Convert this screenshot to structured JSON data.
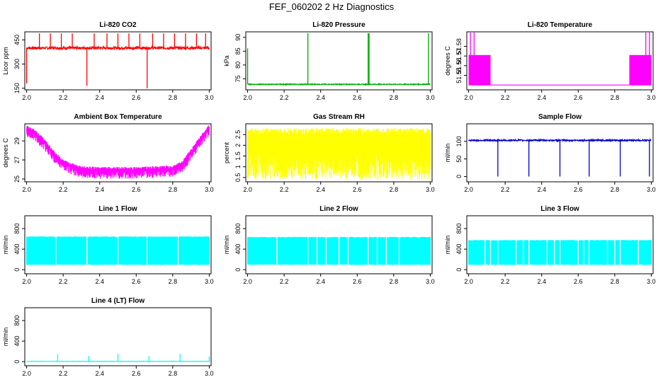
{
  "figure": {
    "title": "FEF_060202  2 Hz Diagnostics"
  },
  "chart_data": [
    {
      "id": "co2",
      "type": "line",
      "title": "Li-820 CO2",
      "ylabel": "Licor ppm",
      "xlim": [
        1.99,
        3.01
      ],
      "ylim": [
        140,
        500
      ],
      "yticks": [
        150,
        300,
        450
      ],
      "xticks": [
        "2.0",
        "2.2",
        "2.4",
        "2.6",
        "2.8",
        "3.0"
      ],
      "color": "#ff0000",
      "baseline": 400,
      "noise": 8,
      "spikes": [
        [
          2.0,
          180
        ],
        [
          2.07,
          490
        ],
        [
          2.13,
          490
        ],
        [
          2.19,
          490
        ],
        [
          2.25,
          490
        ],
        [
          2.33,
          165
        ],
        [
          2.37,
          490
        ],
        [
          2.44,
          490
        ],
        [
          2.5,
          490
        ],
        [
          2.56,
          490
        ],
        [
          2.62,
          490
        ],
        [
          2.66,
          150
        ],
        [
          2.69,
          490
        ],
        [
          2.75,
          490
        ],
        [
          2.81,
          490
        ],
        [
          2.87,
          490
        ],
        [
          2.93,
          490
        ],
        [
          2.98,
          490
        ]
      ]
    },
    {
      "id": "pressure",
      "type": "line",
      "title": "Li-820 Pressure",
      "ylabel": "kPa",
      "xlim": [
        1.99,
        3.01
      ],
      "ylim": [
        71,
        92
      ],
      "yticks": [
        75,
        80,
        85,
        90
      ],
      "xticks": [
        "2.0",
        "2.2",
        "2.4",
        "2.6",
        "2.8",
        "3.0"
      ],
      "color": "#00aa00",
      "baseline": 73.0,
      "noise": 0.15,
      "spikes": [
        [
          2.0,
          86
        ],
        [
          2.33,
          91.5
        ],
        [
          2.66,
          91.5
        ],
        [
          2.665,
          91.5
        ],
        [
          2.99,
          91.5
        ]
      ]
    },
    {
      "id": "licor-temp",
      "type": "line",
      "title": "Li-820 Temperature",
      "ylabel": "degrees C",
      "xlim": [
        1.99,
        3.01
      ],
      "ylim": [
        51.535,
        51.595
      ],
      "yticks": [
        51.55,
        51.56,
        51.57,
        51.58
      ],
      "xticks": [
        "2.0",
        "2.2",
        "2.4",
        "2.6",
        "2.8",
        "3.0"
      ],
      "color": "#ff00ff",
      "baseline": 51.54,
      "blocks": [
        [
          2.0,
          2.12,
          51.54,
          51.571
        ],
        [
          2.88,
          3.0,
          51.54,
          51.571
        ]
      ],
      "spikes": [
        [
          2.01,
          51.595
        ],
        [
          2.03,
          51.595
        ],
        [
          2.97,
          51.595
        ],
        [
          2.99,
          51.595
        ]
      ]
    },
    {
      "id": "box-temp",
      "type": "line",
      "title": "Ambient Box Temperature",
      "ylabel": "degrees C",
      "xlim": [
        1.99,
        3.01
      ],
      "ylim": [
        24.7,
        30.8
      ],
      "yticks": [
        25,
        27,
        29
      ],
      "xticks": [
        "2.0",
        "2.2",
        "2.4",
        "2.6",
        "2.8",
        "3.0"
      ],
      "color": "#ff00ff",
      "curve": [
        [
          2.0,
          30.3
        ],
        [
          2.05,
          29.8
        ],
        [
          2.1,
          28.8
        ],
        [
          2.15,
          27.6
        ],
        [
          2.2,
          26.7
        ],
        [
          2.3,
          26.0
        ],
        [
          2.4,
          25.9
        ],
        [
          2.5,
          25.9
        ],
        [
          2.6,
          25.9
        ],
        [
          2.7,
          26.0
        ],
        [
          2.8,
          26.1
        ],
        [
          2.85,
          26.5
        ],
        [
          2.9,
          27.8
        ],
        [
          2.95,
          29.2
        ],
        [
          3.0,
          30.4
        ]
      ],
      "noise": 0.9
    },
    {
      "id": "rh",
      "type": "line",
      "title": "Gas Stream RH",
      "ylabel": "percent",
      "xlim": [
        1.99,
        3.01
      ],
      "ylim": [
        0.3,
        3.0
      ],
      "yticks": [
        0.5,
        1.0,
        1.5,
        2.0,
        2.5
      ],
      "xticks": [
        "2.0",
        "2.2",
        "2.4",
        "2.6",
        "2.8",
        "3.0"
      ],
      "color": "#ffff00",
      "band": [
        0.4,
        2.8
      ]
    },
    {
      "id": "sample-flow",
      "type": "line",
      "title": "Sample Flow",
      "ylabel": "ml/min",
      "xlim": [
        1.99,
        3.01
      ],
      "ylim": [
        -15,
        150
      ],
      "yticks": [
        0,
        50,
        100
      ],
      "xticks": [
        "2.0",
        "2.2",
        "2.4",
        "2.6",
        "2.8",
        "3.0"
      ],
      "color": "#0000cc",
      "baseline": 103,
      "noise": 2,
      "spikes": [
        [
          2.16,
          0
        ],
        [
          2.33,
          0
        ],
        [
          2.5,
          0
        ],
        [
          2.66,
          0
        ],
        [
          2.83,
          0
        ],
        [
          2.99,
          0
        ]
      ]
    },
    {
      "id": "line1",
      "type": "line",
      "title": "Line 1 Flow",
      "ylabel": "ml/min",
      "xlim": [
        1.99,
        3.01
      ],
      "ylim": [
        -80,
        1050
      ],
      "yticks": [
        0,
        400,
        800
      ],
      "xticks": [
        "2.0",
        "2.2",
        "2.4",
        "2.6",
        "2.8",
        "3.0"
      ],
      "color": "#00ffff",
      "band": [
        90,
        650
      ],
      "gaps": [
        2.16,
        2.33,
        2.5,
        2.66,
        2.83
      ]
    },
    {
      "id": "line2",
      "type": "line",
      "title": "Line 2 Flow",
      "ylabel": "ml/min",
      "xlim": [
        1.99,
        3.01
      ],
      "ylim": [
        -80,
        1050
      ],
      "yticks": [
        0,
        400,
        800
      ],
      "xticks": [
        "2.0",
        "2.2",
        "2.4",
        "2.6",
        "2.8",
        "3.0"
      ],
      "color": "#00ffff",
      "band": [
        90,
        640
      ],
      "gaps": [
        2.16,
        2.33,
        2.38,
        2.43,
        2.5,
        2.55,
        2.66,
        2.71,
        2.76,
        2.83
      ]
    },
    {
      "id": "line3",
      "type": "line",
      "title": "Line 3 Flow",
      "ylabel": "ml/min",
      "xlim": [
        1.99,
        3.01
      ],
      "ylim": [
        -80,
        1050
      ],
      "yticks": [
        0,
        400,
        800
      ],
      "xticks": [
        "2.0",
        "2.2",
        "2.4",
        "2.6",
        "2.8",
        "3.0"
      ],
      "color": "#00ffff",
      "band": [
        90,
        580
      ],
      "gaps": [
        2.09,
        2.12,
        2.16,
        2.26,
        2.3,
        2.33,
        2.43,
        2.47,
        2.5,
        2.6,
        2.63,
        2.66,
        2.76,
        2.8,
        2.83,
        2.93
      ]
    },
    {
      "id": "line4",
      "type": "line",
      "title": "Line 4 (LT) Flow",
      "ylabel": "ml/min",
      "xlim": [
        1.99,
        3.01
      ],
      "ylim": [
        -80,
        1050
      ],
      "yticks": [
        0,
        400,
        800
      ],
      "xticks": [
        "2.0",
        "2.2",
        "2.4",
        "2.6",
        "2.8",
        "3.0"
      ],
      "color": "#00ffff",
      "baseline": 5,
      "noise": 3,
      "spikes": [
        [
          2.17,
          150
        ],
        [
          2.34,
          110
        ],
        [
          2.5,
          150
        ],
        [
          2.67,
          110
        ],
        [
          2.84,
          150
        ],
        [
          3.0,
          100
        ]
      ]
    }
  ]
}
